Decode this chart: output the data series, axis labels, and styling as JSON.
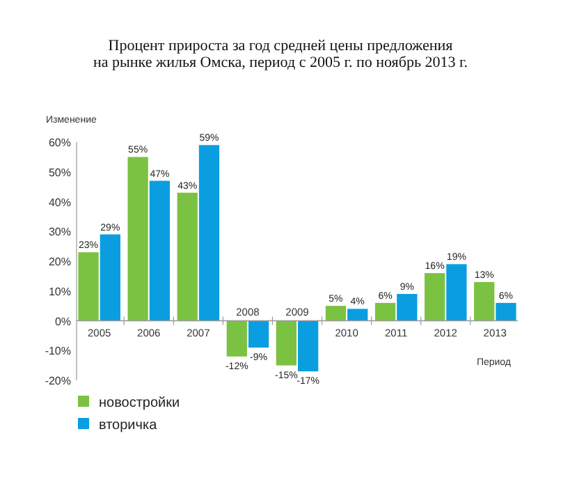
{
  "chart_data": {
    "type": "bar",
    "title": "Процент прироста за год средней цены предложения\nна рынке жилья Омска, период с 2005 г. по ноябрь 2013 г.",
    "ylabel": "Изменение",
    "xlabel": "Период",
    "categories": [
      "2005",
      "2006",
      "2007",
      "2008",
      "2009",
      "2010",
      "2011",
      "2012",
      "2013"
    ],
    "series": [
      {
        "name": "новостройки",
        "color": "#7cc242",
        "values": [
          23,
          55,
          43,
          -12,
          -15,
          5,
          6,
          16,
          13
        ],
        "value_labels": [
          "23%",
          "55%",
          "43%",
          "-12%",
          "-15%",
          "5%",
          "6%",
          "16%",
          "13%"
        ]
      },
      {
        "name": "вторичка",
        "color": "#0a9ee0",
        "values": [
          29,
          47,
          59,
          -9,
          -17,
          4,
          9,
          19,
          6
        ],
        "value_labels": [
          "29%",
          "47%",
          "59%",
          "-9%",
          "-17%",
          "4%",
          "9%",
          "19%",
          "6%"
        ]
      }
    ],
    "ylim": [
      -20,
      60
    ],
    "yticks": [
      {
        "value": 60,
        "label": "60%"
      },
      {
        "value": 50,
        "label": "50%"
      },
      {
        "value": 40,
        "label": "40%"
      },
      {
        "value": 30,
        "label": "30%"
      },
      {
        "value": 20,
        "label": "20%"
      },
      {
        "value": 10,
        "label": "10%"
      },
      {
        "value": 0,
        "label": "0%"
      },
      {
        "value": -10,
        "label": "-10%"
      },
      {
        "value": -20,
        "label": "-20%"
      }
    ],
    "legend": "bottom left"
  }
}
